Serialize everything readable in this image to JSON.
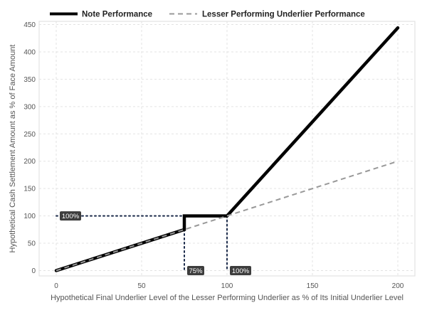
{
  "chart_data": {
    "type": "line",
    "title": "",
    "xlabel": "Hypothetical Final Underlier Level of the Lesser Performing Underlier as % of Its Initial Underlier Level",
    "ylabel": "Hypothetical Cash Settlement Amount as % of Face Amount",
    "xlim": [
      -10,
      210
    ],
    "ylim": [
      -8,
      455
    ],
    "x_ticks": [
      0,
      50,
      100,
      150,
      200
    ],
    "y_ticks": [
      0,
      50,
      100,
      150,
      200,
      250,
      300,
      350,
      400,
      450
    ],
    "grid": true,
    "legend_position": "top",
    "series": [
      {
        "name": "Note Performance",
        "style": "solid",
        "color": "#000000",
        "points": [
          [
            0,
            0
          ],
          [
            75,
            75
          ],
          [
            75,
            100
          ],
          [
            100,
            100
          ],
          [
            200,
            444
          ]
        ]
      },
      {
        "name": "Lesser Performing Underlier Performance",
        "style": "dashed",
        "color": "#999999",
        "points": [
          [
            0,
            0
          ],
          [
            200,
            200
          ]
        ]
      }
    ],
    "reference_lines": [
      {
        "name": "ref-100-horizontal",
        "points": [
          [
            0,
            100
          ],
          [
            100,
            100
          ]
        ]
      },
      {
        "name": "ref-75-vertical",
        "points": [
          [
            75,
            75
          ],
          [
            75,
            0
          ]
        ]
      },
      {
        "name": "ref-100-vertical",
        "points": [
          [
            100,
            100
          ],
          [
            100,
            0
          ]
        ]
      }
    ],
    "annotations": [
      {
        "name": "annotation-100-y",
        "text": "100%",
        "x": 0,
        "y": 100
      },
      {
        "name": "annotation-75-x",
        "text": "75%",
        "x": 75,
        "y": 0
      },
      {
        "name": "annotation-100-x",
        "text": "100%",
        "x": 100,
        "y": 0
      }
    ]
  }
}
